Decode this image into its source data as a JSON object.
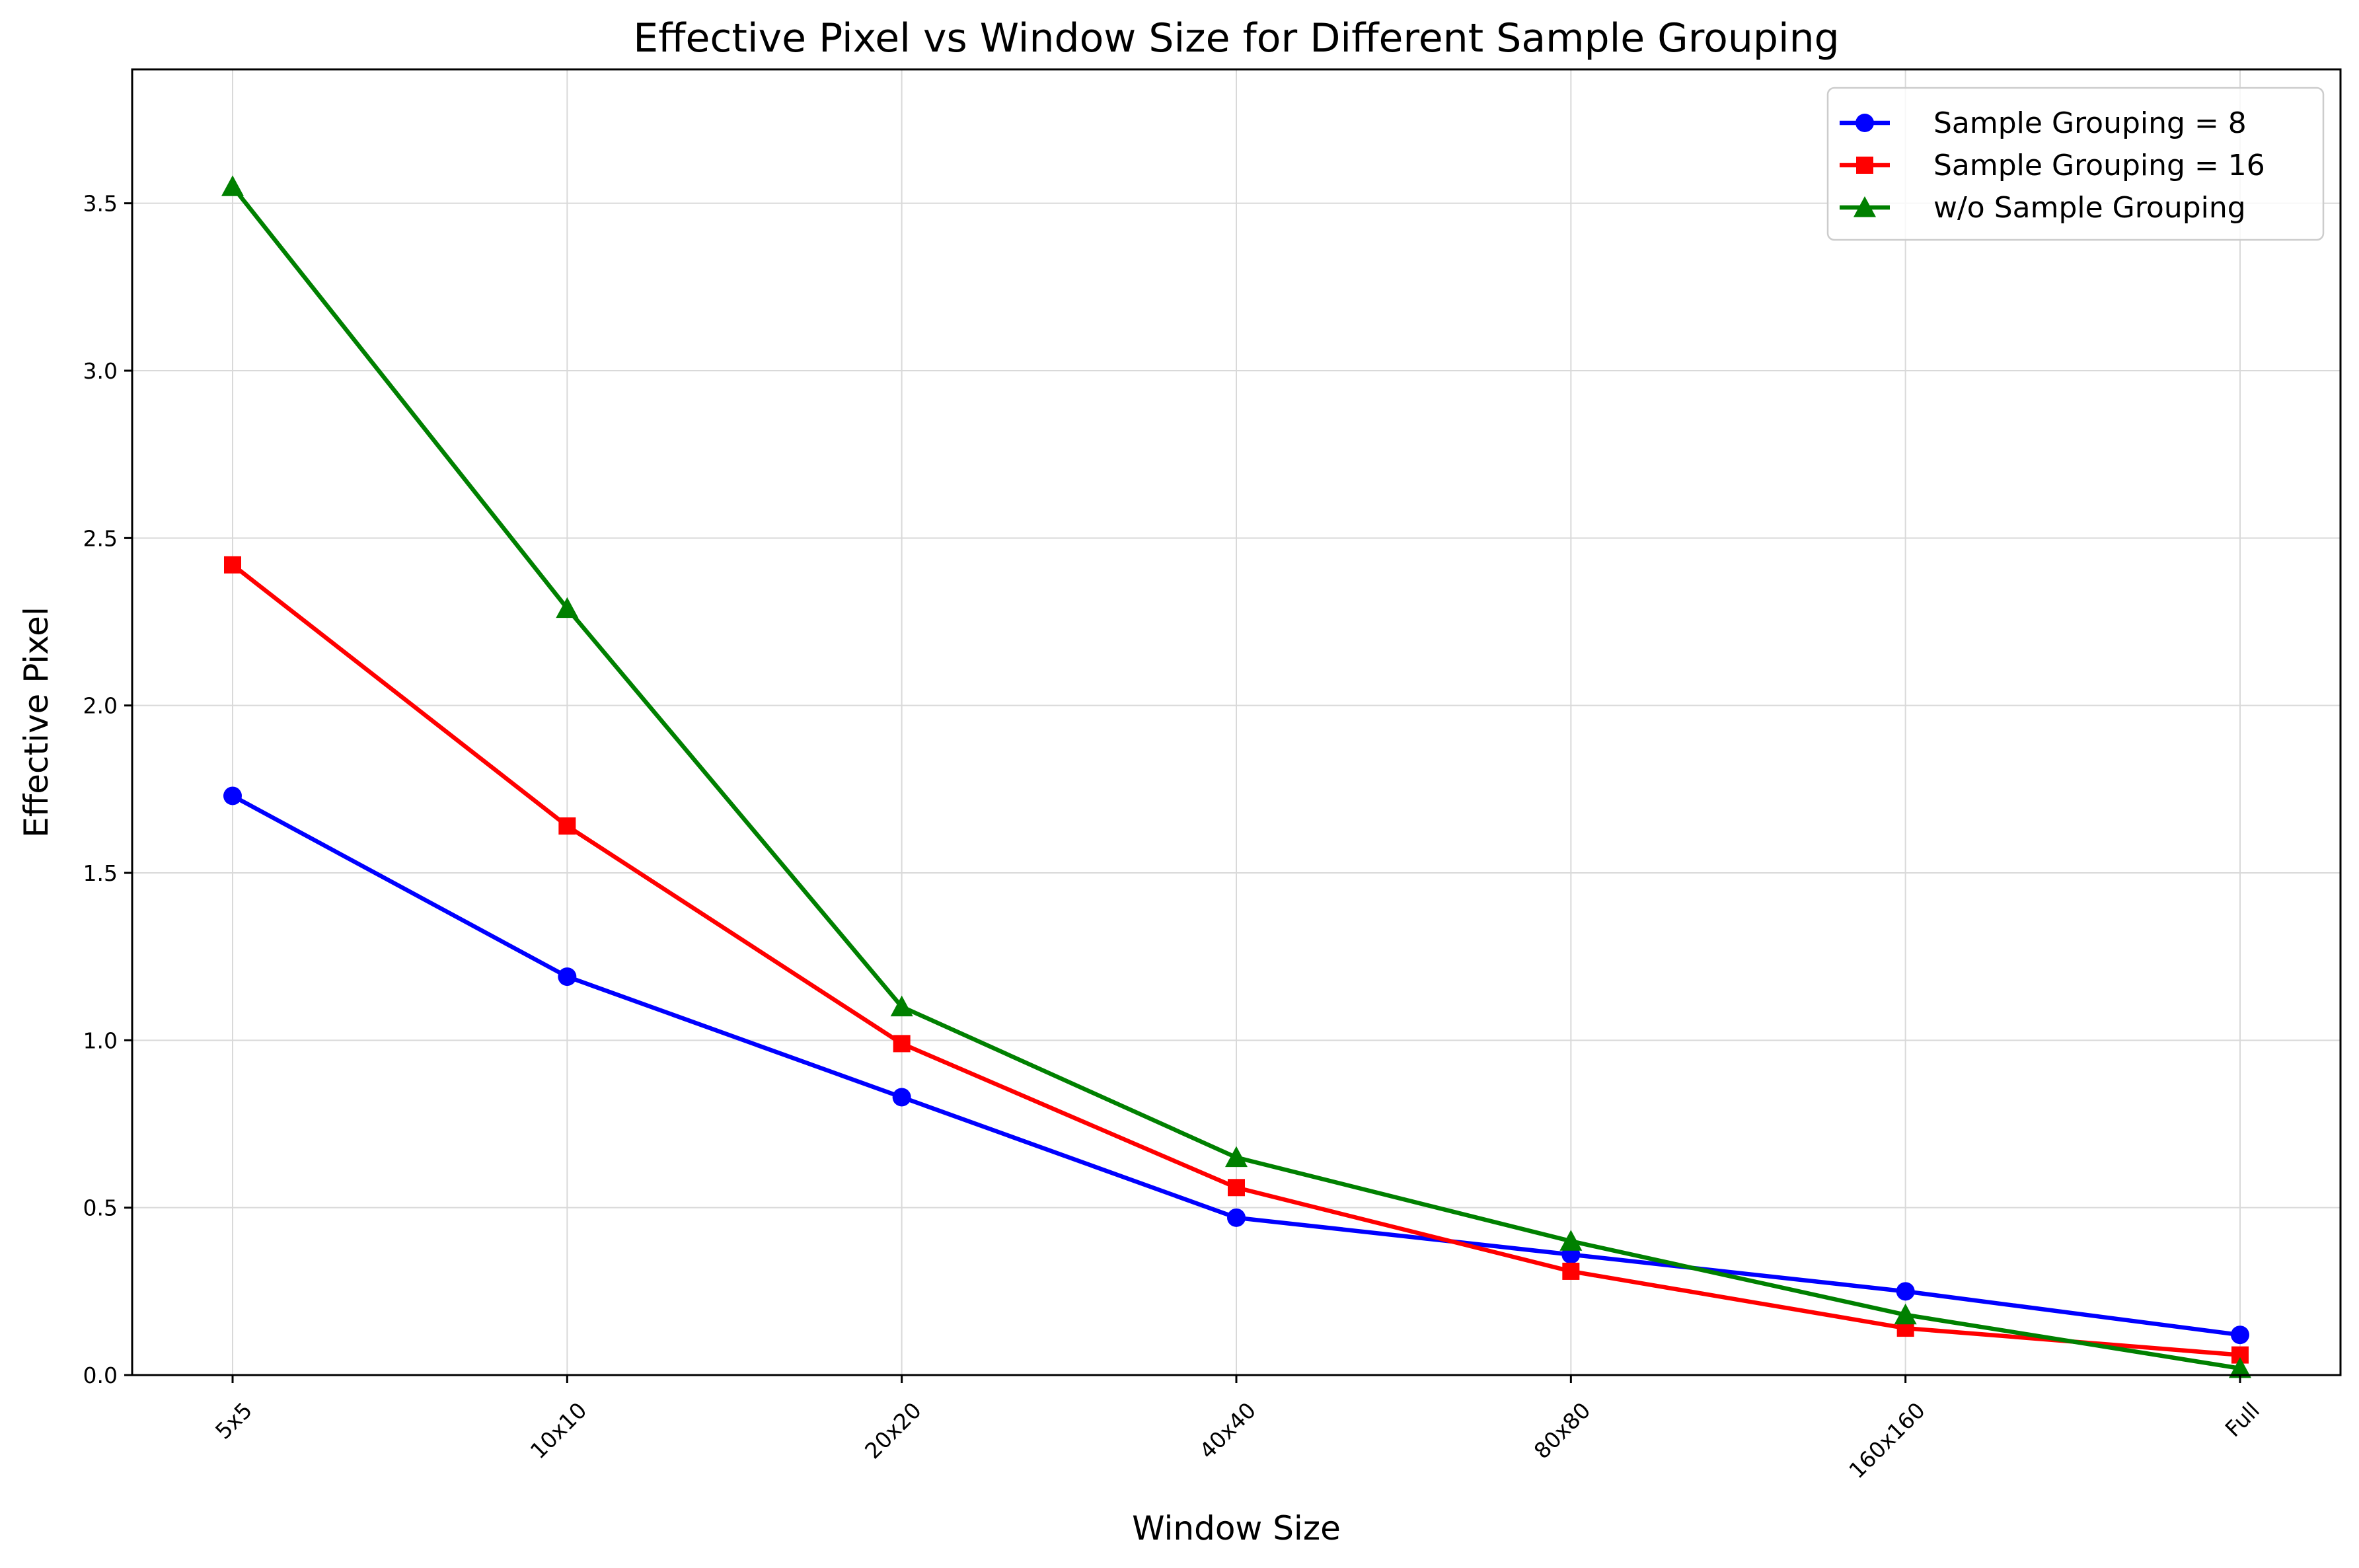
{
  "chart_data": {
    "type": "line",
    "title": "Effective Pixel vs Window Size for Different Sample Grouping",
    "xlabel": "Window Size",
    "ylabel": "Effective Pixel",
    "categories": [
      "5x5",
      "10x10",
      "20x20",
      "40x40",
      "80x80",
      "160x160",
      "Full"
    ],
    "ylim": [
      0,
      3.9
    ],
    "yticks": [
      "0.0",
      "0.5",
      "1.0",
      "1.5",
      "2.0",
      "2.5",
      "3.0",
      "3.5"
    ],
    "grid": true,
    "legend_position": "top-right",
    "series": [
      {
        "name": "Sample Grouping = 8",
        "color": "#0000ff",
        "marker": "circle",
        "values": [
          1.73,
          1.19,
          0.83,
          0.47,
          0.36,
          0.25,
          0.12
        ]
      },
      {
        "name": "Sample Grouping = 16",
        "color": "#ff0000",
        "marker": "square",
        "values": [
          2.42,
          1.64,
          0.99,
          0.56,
          0.31,
          0.14,
          0.06
        ]
      },
      {
        "name": "w/o Sample Grouping",
        "color": "#008000",
        "marker": "triangle",
        "values": [
          3.55,
          2.29,
          1.1,
          0.65,
          0.4,
          0.18,
          0.02
        ]
      }
    ]
  }
}
